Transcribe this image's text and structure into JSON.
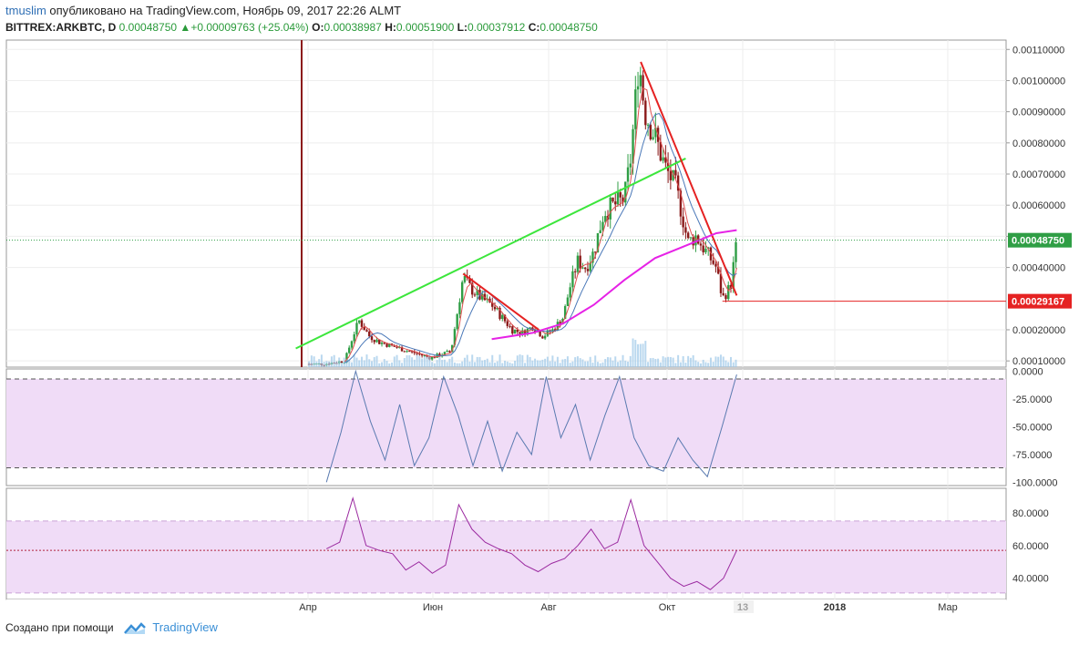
{
  "header": {
    "user": "tmuslim",
    "published": "опубликовано на TradingView.com, Ноябрь 09, 2017 22:26 ALMT",
    "symbol": "BITTREX:ARKBTC, D",
    "last": "0.00048750",
    "change": "+0.00009763 (+25.04%)",
    "o_label": "O:",
    "o_value": "0.00038987",
    "h_label": "H:",
    "h_value": "0.00051900",
    "l_label": "L:",
    "l_value": "0.00037912",
    "c_label": "C:",
    "c_value": "0.00048750"
  },
  "footer": {
    "text": "Создано при помощи",
    "brand": "TradingView"
  },
  "colors": {
    "up": "#2f9e45",
    "down": "#8b1a1a",
    "line_green": "#3ce63c",
    "line_red": "#e52222",
    "ma_magenta": "#e622e6",
    "ma_blue": "#4a78b8",
    "ma_red": "#e05050",
    "band": "#f0dcf7",
    "stoch": "#5a7ab0",
    "rsi": "#9b2aa0",
    "price_tag": "#2f9e45",
    "level_tag": "#e52222"
  },
  "chart_data": [
    {
      "type": "candlestick",
      "panel": "price",
      "y_ticks": [
        "0.00110000",
        "0.00100000",
        "0.00090000",
        "0.00080000",
        "0.00070000",
        "0.00060000",
        "0.00050000",
        "0.00040000",
        "0.00020000",
        "0.00010000"
      ],
      "y_tick_values": [
        0.0011,
        0.001,
        0.0009,
        0.0008,
        0.0007,
        0.0006,
        0.0005,
        0.0004,
        0.0002,
        0.0001
      ],
      "ylim": [
        8e-05,
        0.00113
      ],
      "x_labels": [
        "Апр",
        "Июн",
        "Авг",
        "Окт",
        "13",
        "2018",
        "Мар"
      ],
      "last_price_label": "0.00048750",
      "last_price": 0.0004875,
      "level_label": "0.00029167",
      "level": 0.00029167,
      "close_path": [
        [
          0.0,
          9e-05
        ],
        [
          0.8,
          9e-05
        ],
        [
          1.8,
          0.0001
        ],
        [
          2.2,
          0.00018
        ],
        [
          2.5,
          0.00023
        ],
        [
          3.0,
          0.00018
        ],
        [
          3.5,
          0.00016
        ],
        [
          4.0,
          0.00015
        ],
        [
          4.5,
          0.00014
        ],
        [
          5.0,
          0.00013
        ],
        [
          5.5,
          0.00012
        ],
        [
          6.0,
          0.00011
        ],
        [
          6.5,
          0.00012
        ],
        [
          7.0,
          0.00013
        ],
        [
          7.3,
          0.00025
        ],
        [
          7.6,
          0.00037
        ],
        [
          8.0,
          0.00033
        ],
        [
          8.5,
          0.0003
        ],
        [
          9.0,
          0.00028
        ],
        [
          9.5,
          0.00024
        ],
        [
          10.0,
          0.0002
        ],
        [
          10.5,
          0.00019
        ],
        [
          11.0,
          0.00021
        ],
        [
          11.5,
          0.00018
        ],
        [
          12.0,
          0.0002
        ],
        [
          12.5,
          0.00024
        ],
        [
          12.8,
          0.00033
        ],
        [
          13.2,
          0.00042
        ],
        [
          13.6,
          0.0004
        ],
        [
          14.0,
          0.00045
        ],
        [
          14.5,
          0.00058
        ],
        [
          15.0,
          0.0006
        ],
        [
          15.5,
          0.00062
        ],
        [
          15.8,
          0.00075
        ],
        [
          16.0,
          0.0009
        ],
        [
          16.2,
          0.00107
        ],
        [
          16.5,
          0.0009
        ],
        [
          17.0,
          0.00082
        ],
        [
          17.5,
          0.00072
        ],
        [
          18.0,
          0.00066
        ],
        [
          18.3,
          0.00058
        ],
        [
          18.6,
          0.00048
        ],
        [
          19.0,
          0.0005
        ],
        [
          19.5,
          0.00045
        ],
        [
          20.0,
          0.0004
        ],
        [
          20.3,
          0.0003
        ],
        [
          20.7,
          0.00034
        ],
        [
          21.0,
          0.00048
        ]
      ],
      "lines": [
        {
          "name": "green-trendline",
          "from": [
            -0.6,
            0.00014
          ],
          "to": [
            18.5,
            0.00075
          ]
        },
        {
          "name": "red-trendline-1",
          "from": [
            7.6,
            0.00038
          ],
          "to": [
            11.3,
            0.0002
          ]
        },
        {
          "name": "red-trendline-2",
          "from": [
            16.3,
            0.00106
          ],
          "to": [
            21.0,
            0.00031
          ]
        },
        {
          "name": "magenta-ma",
          "points": [
            [
              9.0,
              0.00017
            ],
            [
              11.0,
              0.00019
            ],
            [
              12.5,
              0.00022
            ],
            [
              14.0,
              0.00028
            ],
            [
              15.5,
              0.00036
            ],
            [
              17.0,
              0.00043
            ],
            [
              18.5,
              0.00047
            ],
            [
              20.0,
              0.00051
            ],
            [
              21.0,
              0.00052
            ]
          ]
        }
      ]
    },
    {
      "type": "line",
      "panel": "stochastic",
      "y_ticks": [
        "0.0000",
        "-25.0000",
        "-50.0000",
        "-75.0000",
        "-100.0000"
      ],
      "y_tick_values": [
        0,
        -25,
        -50,
        -75,
        -100
      ],
      "ylim": [
        -103,
        2
      ],
      "bands": [
        -7,
        -87
      ],
      "series": [
        {
          "values": [
            -100,
            -55,
            0,
            -45,
            -80,
            -30,
            -85,
            -60,
            -5,
            -40,
            -85,
            -45,
            -90,
            -55,
            -75,
            -5,
            -60,
            -30,
            -80,
            -40,
            -5,
            -60,
            -85,
            -90,
            -60,
            -80,
            -95,
            -50,
            -3
          ]
        }
      ]
    },
    {
      "type": "line",
      "panel": "rsi",
      "y_ticks": [
        "80.0000",
        "60.0000",
        "40.0000"
      ],
      "y_tick_values": [
        80,
        60,
        40
      ],
      "ylim": [
        27,
        95
      ],
      "bands": [
        75,
        31
      ],
      "midline": 57,
      "series": [
        {
          "values": [
            58,
            62,
            89,
            60,
            57,
            55,
            45,
            50,
            43,
            48,
            85,
            70,
            62,
            58,
            55,
            48,
            44,
            49,
            52,
            60,
            70,
            58,
            62,
            88,
            60,
            50,
            40,
            35,
            38,
            33,
            40,
            57
          ]
        }
      ]
    }
  ]
}
